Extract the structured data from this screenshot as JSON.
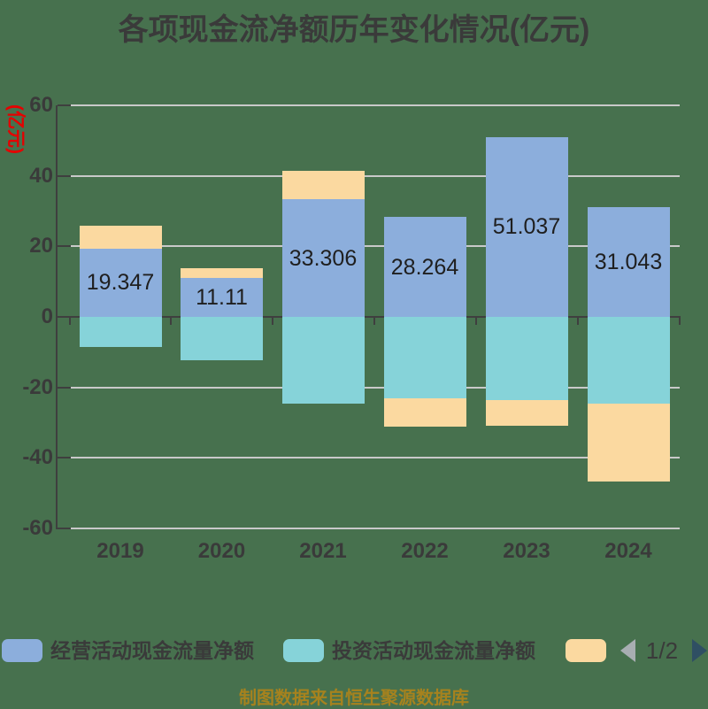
{
  "title": "各项现金流净额历年变化情况(亿元)",
  "footer": {
    "source": "制图数据来自恒生聚源数据库"
  },
  "legend": {
    "items": [
      {
        "label": "经营活动现金流量净额",
        "color": "#8CAEDC"
      },
      {
        "label": "投资活动现金流量净额",
        "color": "#86D3D9"
      },
      {
        "label": "",
        "color": "#FBD9A0"
      }
    ],
    "pagination": {
      "label": "1/2",
      "prev_icon": "left-triangle",
      "next_icon": "right-triangle"
    }
  },
  "chart_data": {
    "type": "bar",
    "stacked": true,
    "title": "各项现金流净额历年变化情况(亿元)",
    "categories": [
      "2019",
      "2020",
      "2021",
      "2022",
      "2023",
      "2024"
    ],
    "series": [
      {
        "key": "operating",
        "name": "经营活动现金流量净额",
        "color": "#8CAEDC",
        "values": [
          19.347,
          11.11,
          33.306,
          28.264,
          51.037,
          31.043
        ],
        "data_labels": [
          "19.347",
          "11.11",
          "33.306",
          "28.264",
          "51.037",
          "31.043"
        ]
      },
      {
        "key": "investing",
        "name": "投资活动现金流量净额",
        "color": "#86D3D9",
        "values": [
          -8.5,
          -12.3,
          -24.6,
          -23.1,
          -23.5,
          -24.6
        ]
      },
      {
        "key": "financing",
        "name": "",
        "color": "#FBD9A0",
        "values": [
          6.5,
          2.7,
          8.1,
          -8.0,
          -7.4,
          -22.1
        ]
      }
    ],
    "ylabel": "(亿元)",
    "ylim": [
      -60,
      60
    ],
    "yticks": [
      60,
      40,
      20,
      0,
      -20,
      -40,
      -60
    ],
    "grid": true,
    "legend_position": "bottom"
  },
  "colors": {
    "background": "#47714E",
    "title_text": "#3A3A3A",
    "axis_line": "#3F3F3F",
    "grid_line": "#C9C9C9",
    "tick_label": "#3A3A3A",
    "data_label": "#1F1F1F",
    "y_axis_name_red": "#E60000",
    "footer_gold": "#A6821E",
    "pagination_prev_arrow": "#A8AEB2",
    "pagination_next_arrow": "#2F4F63"
  }
}
